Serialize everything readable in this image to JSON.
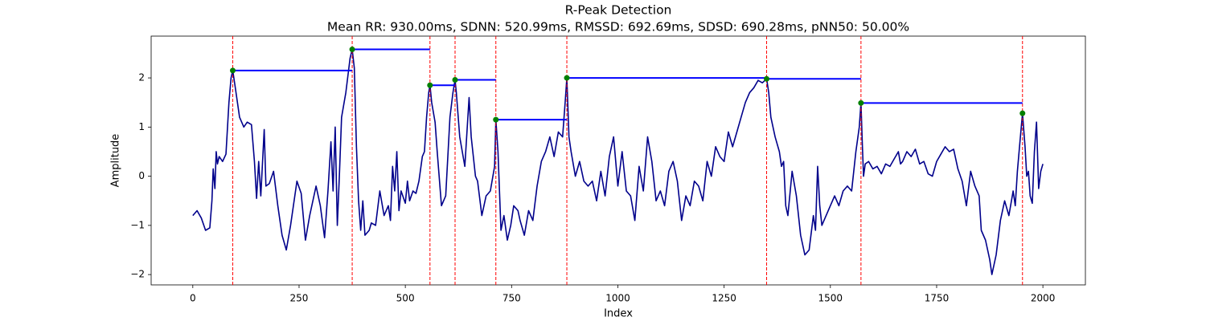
{
  "chart_data": {
    "type": "line",
    "title": "R-Peak Detection",
    "subtitle": "Mean RR: 930.00ms, SDNN: 520.99ms, RMSSD: 692.69ms, SDSD: 690.28ms, pNN50: 50.00%",
    "xlabel": "Index",
    "ylabel": "Amplitude",
    "color": "#00008b",
    "peak_color": "#008000",
    "peak_line_color": "#ff0000",
    "rr_color": "#0000ff",
    "xlim": [
      -98,
      2100
    ],
    "ylim": [
      -2.21,
      2.85
    ],
    "xticks": [
      0,
      250,
      500,
      750,
      1000,
      1250,
      1500,
      1750,
      2000
    ],
    "yticks": [
      {
        "value": -2,
        "label": "−2"
      },
      {
        "value": -1,
        "label": "−1"
      },
      0,
      1,
      2
    ],
    "x": [
      0,
      10,
      20,
      30,
      40,
      45,
      48,
      52,
      55,
      58,
      62,
      70,
      78,
      85,
      90,
      94,
      100,
      110,
      120,
      128,
      138,
      145,
      150,
      155,
      160,
      168,
      172,
      180,
      190,
      200,
      210,
      220,
      230,
      245,
      255,
      265,
      275,
      290,
      300,
      310,
      318,
      325,
      330,
      335,
      340,
      345,
      350,
      360,
      370,
      375,
      380,
      385,
      390,
      395,
      400,
      405,
      415,
      420,
      430,
      440,
      450,
      460,
      465,
      470,
      475,
      480,
      485,
      490,
      500,
      505,
      510,
      518,
      525,
      532,
      540,
      545,
      550,
      555,
      558,
      562,
      570,
      575,
      585,
      595,
      605,
      612,
      617,
      620,
      628,
      640,
      650,
      655,
      665,
      670,
      680,
      690,
      700,
      710,
      713,
      718,
      725,
      732,
      740,
      748,
      755,
      765,
      770,
      780,
      790,
      800,
      810,
      820,
      830,
      840,
      850,
      860,
      870,
      876,
      880,
      885,
      890,
      900,
      910,
      920,
      930,
      940,
      950,
      960,
      970,
      980,
      990,
      1000,
      1010,
      1020,
      1030,
      1040,
      1050,
      1060,
      1070,
      1080,
      1090,
      1100,
      1110,
      1120,
      1130,
      1140,
      1150,
      1160,
      1170,
      1180,
      1190,
      1200,
      1210,
      1220,
      1230,
      1240,
      1250,
      1260,
      1270,
      1280,
      1290,
      1300,
      1310,
      1320,
      1330,
      1340,
      1350,
      1355,
      1360,
      1370,
      1380,
      1385,
      1390,
      1395,
      1400,
      1410,
      1420,
      1430,
      1440,
      1450,
      1460,
      1465,
      1470,
      1475,
      1480,
      1490,
      1500,
      1510,
      1520,
      1530,
      1540,
      1550,
      1560,
      1568,
      1572,
      1575,
      1578,
      1582,
      1590,
      1600,
      1610,
      1620,
      1630,
      1640,
      1650,
      1660,
      1665,
      1670,
      1680,
      1690,
      1700,
      1710,
      1720,
      1730,
      1740,
      1750,
      1760,
      1770,
      1780,
      1790,
      1800,
      1810,
      1820,
      1830,
      1840,
      1850,
      1855,
      1865,
      1870,
      1875,
      1880,
      1885,
      1890,
      1900,
      1910,
      1920,
      1930,
      1935,
      1940,
      1945,
      1952,
      1958,
      1962,
      1966,
      1970,
      1975,
      1980,
      1985,
      1990,
      1995,
      2000
    ],
    "values": [
      -0.8,
      -0.7,
      -0.85,
      -1.1,
      -1.05,
      -0.5,
      0.15,
      -0.25,
      0.5,
      0.25,
      0.4,
      0.3,
      0.45,
      1.5,
      2.0,
      2.15,
      1.8,
      1.2,
      1.0,
      1.1,
      1.05,
      0.3,
      -0.45,
      0.3,
      -0.4,
      0.95,
      -0.2,
      -0.15,
      0.1,
      -0.6,
      -1.2,
      -1.5,
      -1.0,
      -0.1,
      -0.35,
      -1.3,
      -0.8,
      -0.2,
      -0.6,
      -1.25,
      -0.3,
      0.7,
      -0.3,
      1.0,
      -1.0,
      0.05,
      1.2,
      1.7,
      2.4,
      2.58,
      2.2,
      0.6,
      -0.5,
      -1.1,
      -0.5,
      -1.2,
      -1.1,
      -0.95,
      -1.0,
      -0.3,
      -0.8,
      -0.6,
      -0.9,
      0.2,
      -0.3,
      0.5,
      -0.7,
      -0.3,
      -0.55,
      -0.1,
      -0.5,
      -0.3,
      -0.35,
      -0.1,
      0.4,
      0.5,
      1.2,
      1.7,
      1.85,
      1.5,
      1.1,
      0.5,
      -0.6,
      -0.4,
      1.2,
      1.7,
      1.96,
      1.7,
      0.8,
      0.2,
      1.6,
      0.8,
      0.0,
      -0.1,
      -0.8,
      -0.4,
      -0.3,
      0.2,
      1.15,
      0.5,
      -1.1,
      -0.8,
      -1.3,
      -1.0,
      -0.6,
      -0.7,
      -0.9,
      -1.2,
      -0.7,
      -0.9,
      -0.2,
      0.3,
      0.5,
      0.8,
      0.4,
      0.9,
      0.8,
      1.5,
      2.0,
      0.8,
      0.5,
      0.0,
      0.3,
      -0.1,
      -0.2,
      -0.1,
      -0.5,
      0.1,
      -0.4,
      0.4,
      0.8,
      -0.2,
      0.5,
      -0.3,
      -0.4,
      -0.9,
      0.2,
      -0.3,
      0.8,
      0.3,
      -0.5,
      -0.3,
      -0.6,
      0.1,
      0.3,
      -0.1,
      -0.9,
      -0.4,
      -0.6,
      -0.1,
      -0.2,
      -0.5,
      0.3,
      0.0,
      0.6,
      0.4,
      0.3,
      0.9,
      0.6,
      0.9,
      1.2,
      1.5,
      1.7,
      1.8,
      1.95,
      1.9,
      1.98,
      1.7,
      1.2,
      0.8,
      0.5,
      0.2,
      0.3,
      -0.6,
      -0.8,
      0.1,
      -0.4,
      -1.2,
      -1.6,
      -1.5,
      -0.8,
      -1.1,
      0.2,
      -0.6,
      -1.0,
      -0.8,
      -0.6,
      -0.4,
      -0.6,
      -0.3,
      -0.2,
      -0.3,
      0.5,
      1.0,
      1.49,
      0.7,
      0.0,
      0.25,
      0.3,
      0.15,
      0.2,
      0.05,
      0.25,
      0.2,
      0.35,
      0.5,
      0.25,
      0.3,
      0.5,
      0.4,
      0.55,
      0.25,
      0.3,
      0.05,
      0.0,
      0.3,
      0.45,
      0.6,
      0.5,
      0.55,
      0.15,
      -0.1,
      -0.6,
      0.1,
      -0.2,
      -0.4,
      -1.1,
      -1.3,
      -1.5,
      -1.7,
      -2.0,
      -1.8,
      -1.6,
      -0.9,
      -0.5,
      -0.8,
      -0.3,
      -0.6,
      0.1,
      0.6,
      1.28,
      0.6,
      0.0,
      0.1,
      -0.4,
      -0.55,
      0.5,
      1.1,
      -0.25,
      0.1,
      0.25
    ],
    "peaks": {
      "x": [
        94,
        375,
        558,
        617,
        713,
        880,
        1350,
        1572,
        1952
      ],
      "values": [
        2.15,
        2.58,
        1.85,
        1.96,
        1.15,
        2.0,
        1.98,
        1.49,
        1.28
      ]
    }
  }
}
